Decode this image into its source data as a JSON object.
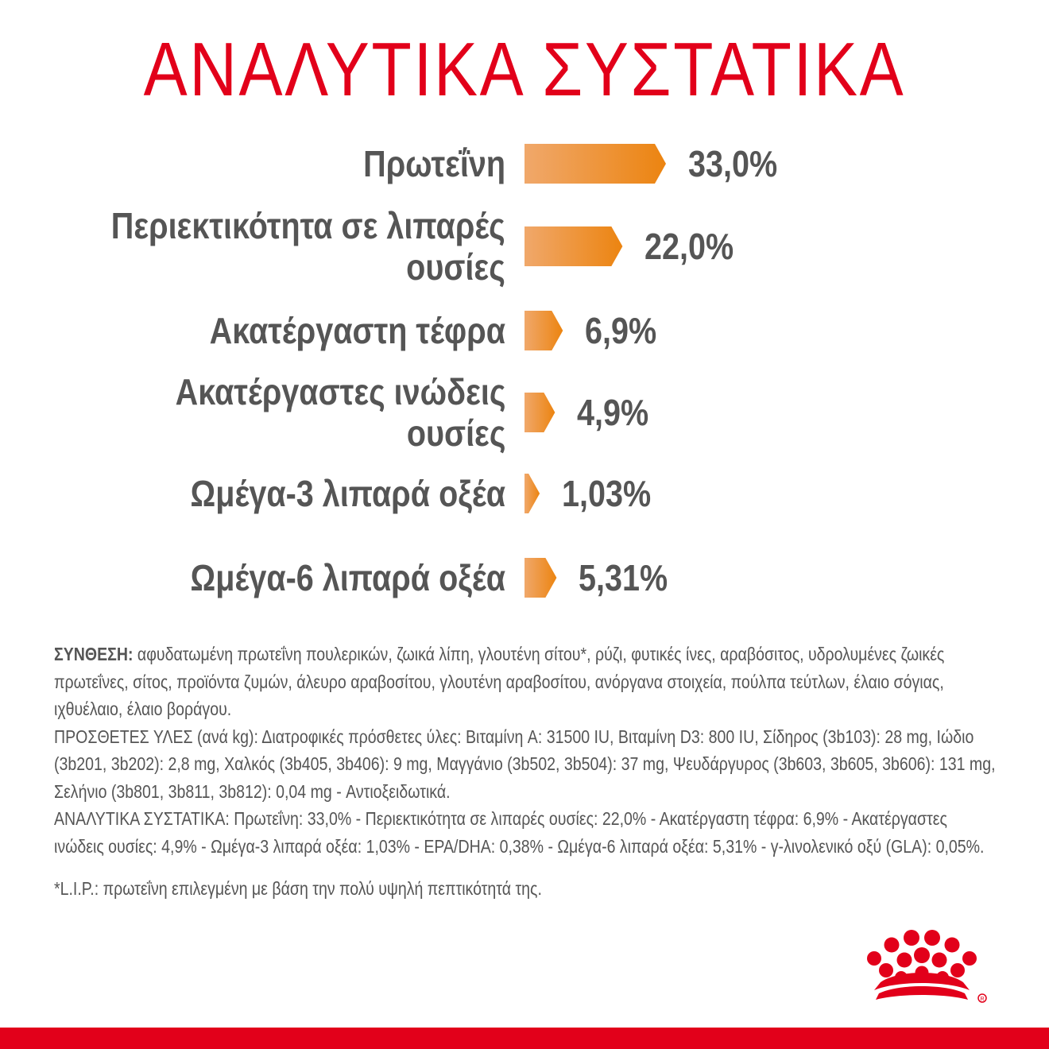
{
  "colors": {
    "brand": "#e2001a",
    "bar_light": "#f0a86b",
    "bar_dark": "#ec8410",
    "text": "#555555"
  },
  "chart_data": {
    "type": "bar",
    "title": "ΑΝΑΛΥΤΙΚΑ ΣΥΣΤΑΤΙΚΑ",
    "categories": [
      [
        "Πρωτεΐνη"
      ],
      [
        "Περιεκτικότητα σε λιπαρές",
        "ουσίες"
      ],
      [
        "Ακατέργαστη τέφρα"
      ],
      [
        "Ακατέργαστες ινώδεις",
        "ουσίες"
      ],
      [
        "Ωμέγα-3 λιπαρά οξέα"
      ],
      [
        "Ωμέγα-6 λιπαρά οξέα"
      ]
    ],
    "values": [
      33.0,
      22.0,
      6.9,
      4.9,
      1.03,
      5.31
    ],
    "value_labels": [
      "33,0%",
      "22,0%",
      "6,9%",
      "4,9%",
      "1,03%",
      "5,31%"
    ],
    "orientation": "horizontal",
    "grid": false
  },
  "composition": {
    "head": "ΣΥΝΘΕΣΗ:",
    "ingredients": " αφυδατωμένη πρωτεΐνη πουλερικών, ζωικά λίπη, γλουτένη σίτου*, ρύζι, φυτικές ίνες, αραβόσιτος, υδρολυμένες ζωικές πρωτεΐνες, σίτος, προϊόντα ζυμών, άλευρο αραβοσίτου, γλουτένη αραβοσίτου, ανόργανα στοιχεία, πούλπα τεύτλων, έλαιο σόγιας, ιχθυέλαιο, έλαιο βοράγου.",
    "additives": "ΠΡΟΣΘΕΤΕΣ ΥΛΕΣ (ανά kg): Διατροφικές πρόσθετες ύλες: Βιταμίνη A: 31500 IU, Βιταμίνη D3: 800 IU, Σίδηρος (3b103): 28 mg, Ιώδιο (3b201, 3b202): 2,8 mg, Χαλκός (3b405, 3b406): 9 mg, Μαγγάνιο (3b502, 3b504): 37 mg, Ψευδάργυρος (3b603, 3b605, 3b606): 131 mg, Σελήνιο (3b801, 3b811, 3b812): 0,04 mg - Αντιοξειδωτικά.",
    "analytical": "ΑΝΑΛΥΤΙΚΑ ΣΥΣΤΑΤΙΚΑ: Πρωτεΐνη: 33,0% - Περιεκτικότητα σε λιπαρές ουσίες: 22,0% - Ακατέργαστη τέφρα: 6,9% - Ακατέργαστες ινώδεις ουσίες: 4,9% - Ωμέγα-3 λιπαρά οξέα: 1,03% - EPA/DHA: 0,38% - Ωμέγα-6 λιπαρά οξέα: 5,31% - γ-λινολενικό οξύ (GLA): 0,05%."
  },
  "footnote": "*L.I.P.: πρωτεΐνη επιλεγμένη με βάση την πολύ υψηλή πεπτικότητά της.",
  "logo": {
    "icon": "royal-canin-crown-icon"
  }
}
